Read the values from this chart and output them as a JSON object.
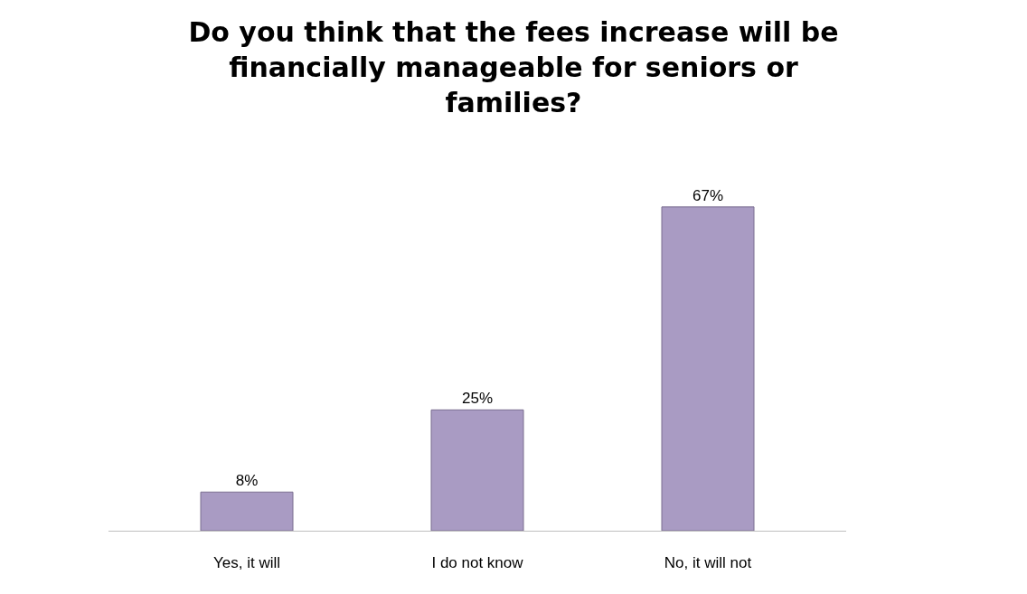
{
  "chart_data": {
    "type": "bar",
    "title": "Do you think that the fees increase will be financially manageable for seniors or families?",
    "categories": [
      "Yes, it will",
      "I do not know",
      "No, it will not"
    ],
    "values": [
      8,
      25,
      67
    ],
    "color": "#a99bc3",
    "data_labels": true,
    "value_labels": [
      "8%",
      "25%",
      "67%"
    ]
  }
}
